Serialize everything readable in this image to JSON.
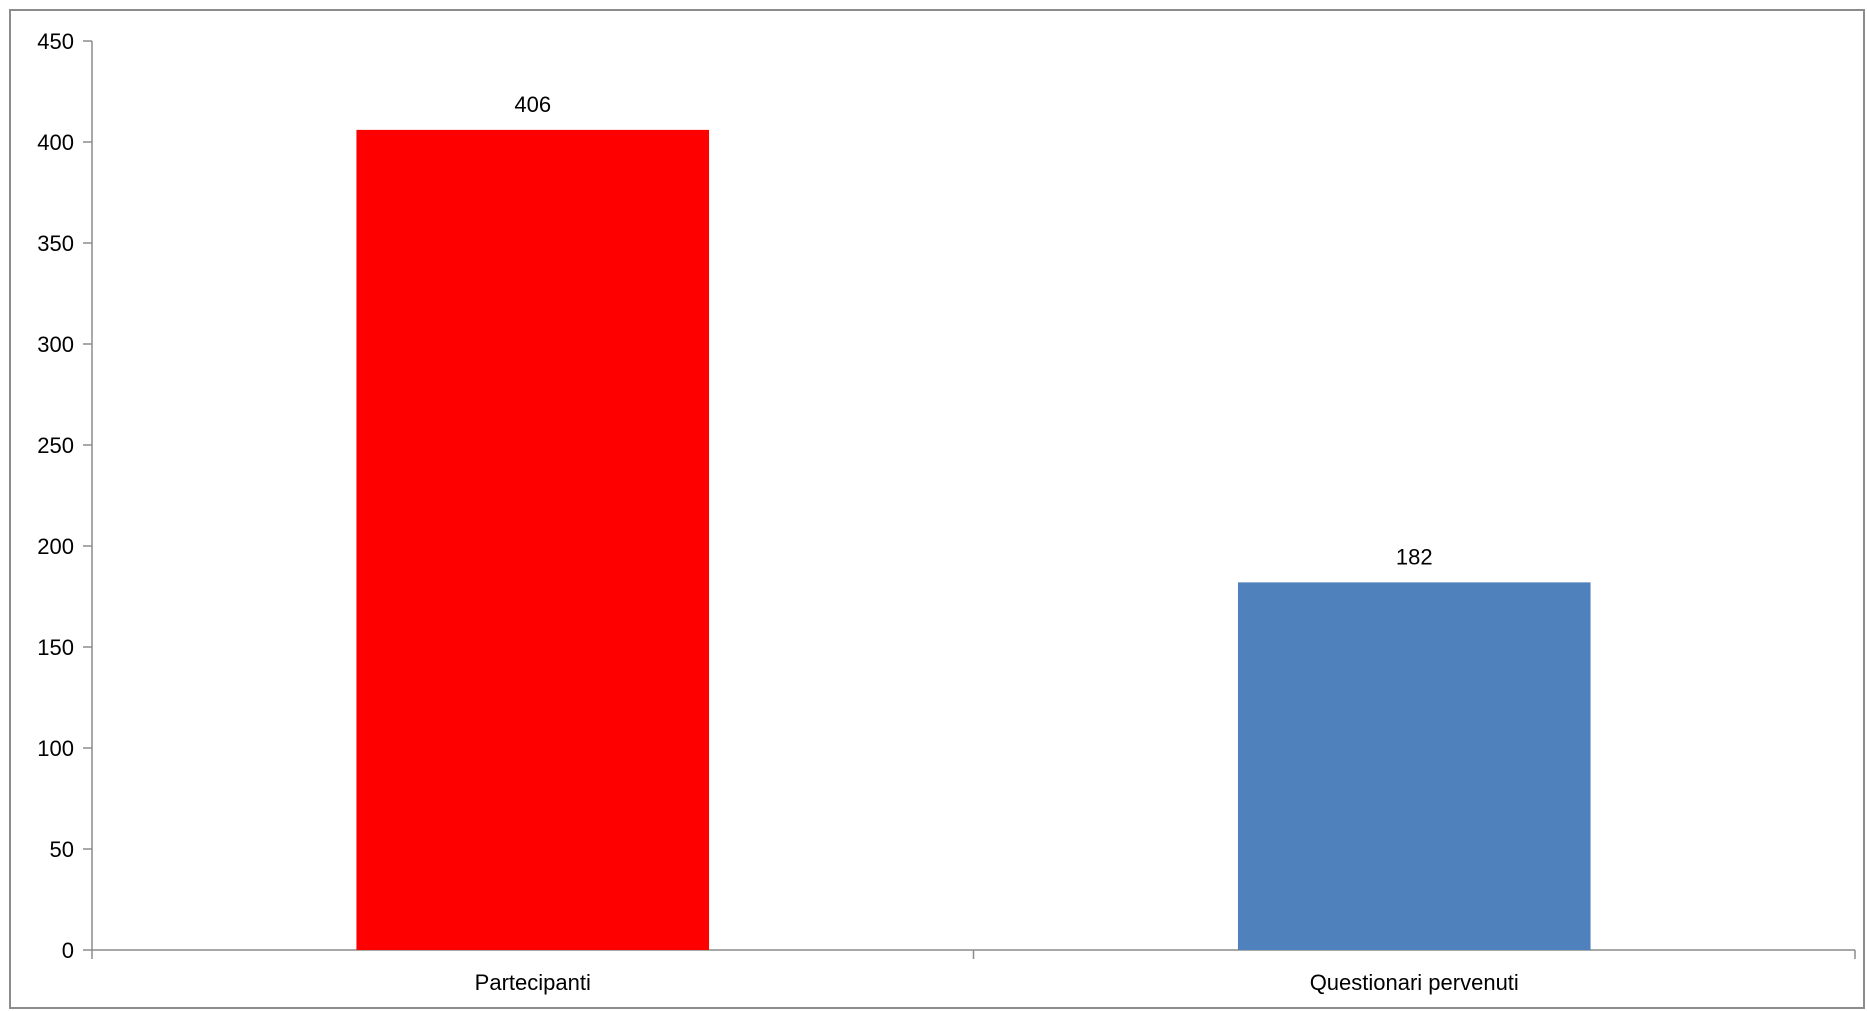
{
  "chart_data": {
    "type": "bar",
    "title": "",
    "xlabel": "",
    "ylabel": "",
    "categories": [
      "Partecipanti",
      "Questionari pervenuti"
    ],
    "values": [
      406,
      182
    ],
    "bar_colors": [
      "#ff0000",
      "#4f81bd"
    ],
    "ylim": [
      0,
      450
    ],
    "yticks": [
      0,
      50,
      100,
      150,
      200,
      250,
      300,
      350,
      400,
      450
    ],
    "grid": false,
    "legend": "none",
    "data_labels": true
  }
}
